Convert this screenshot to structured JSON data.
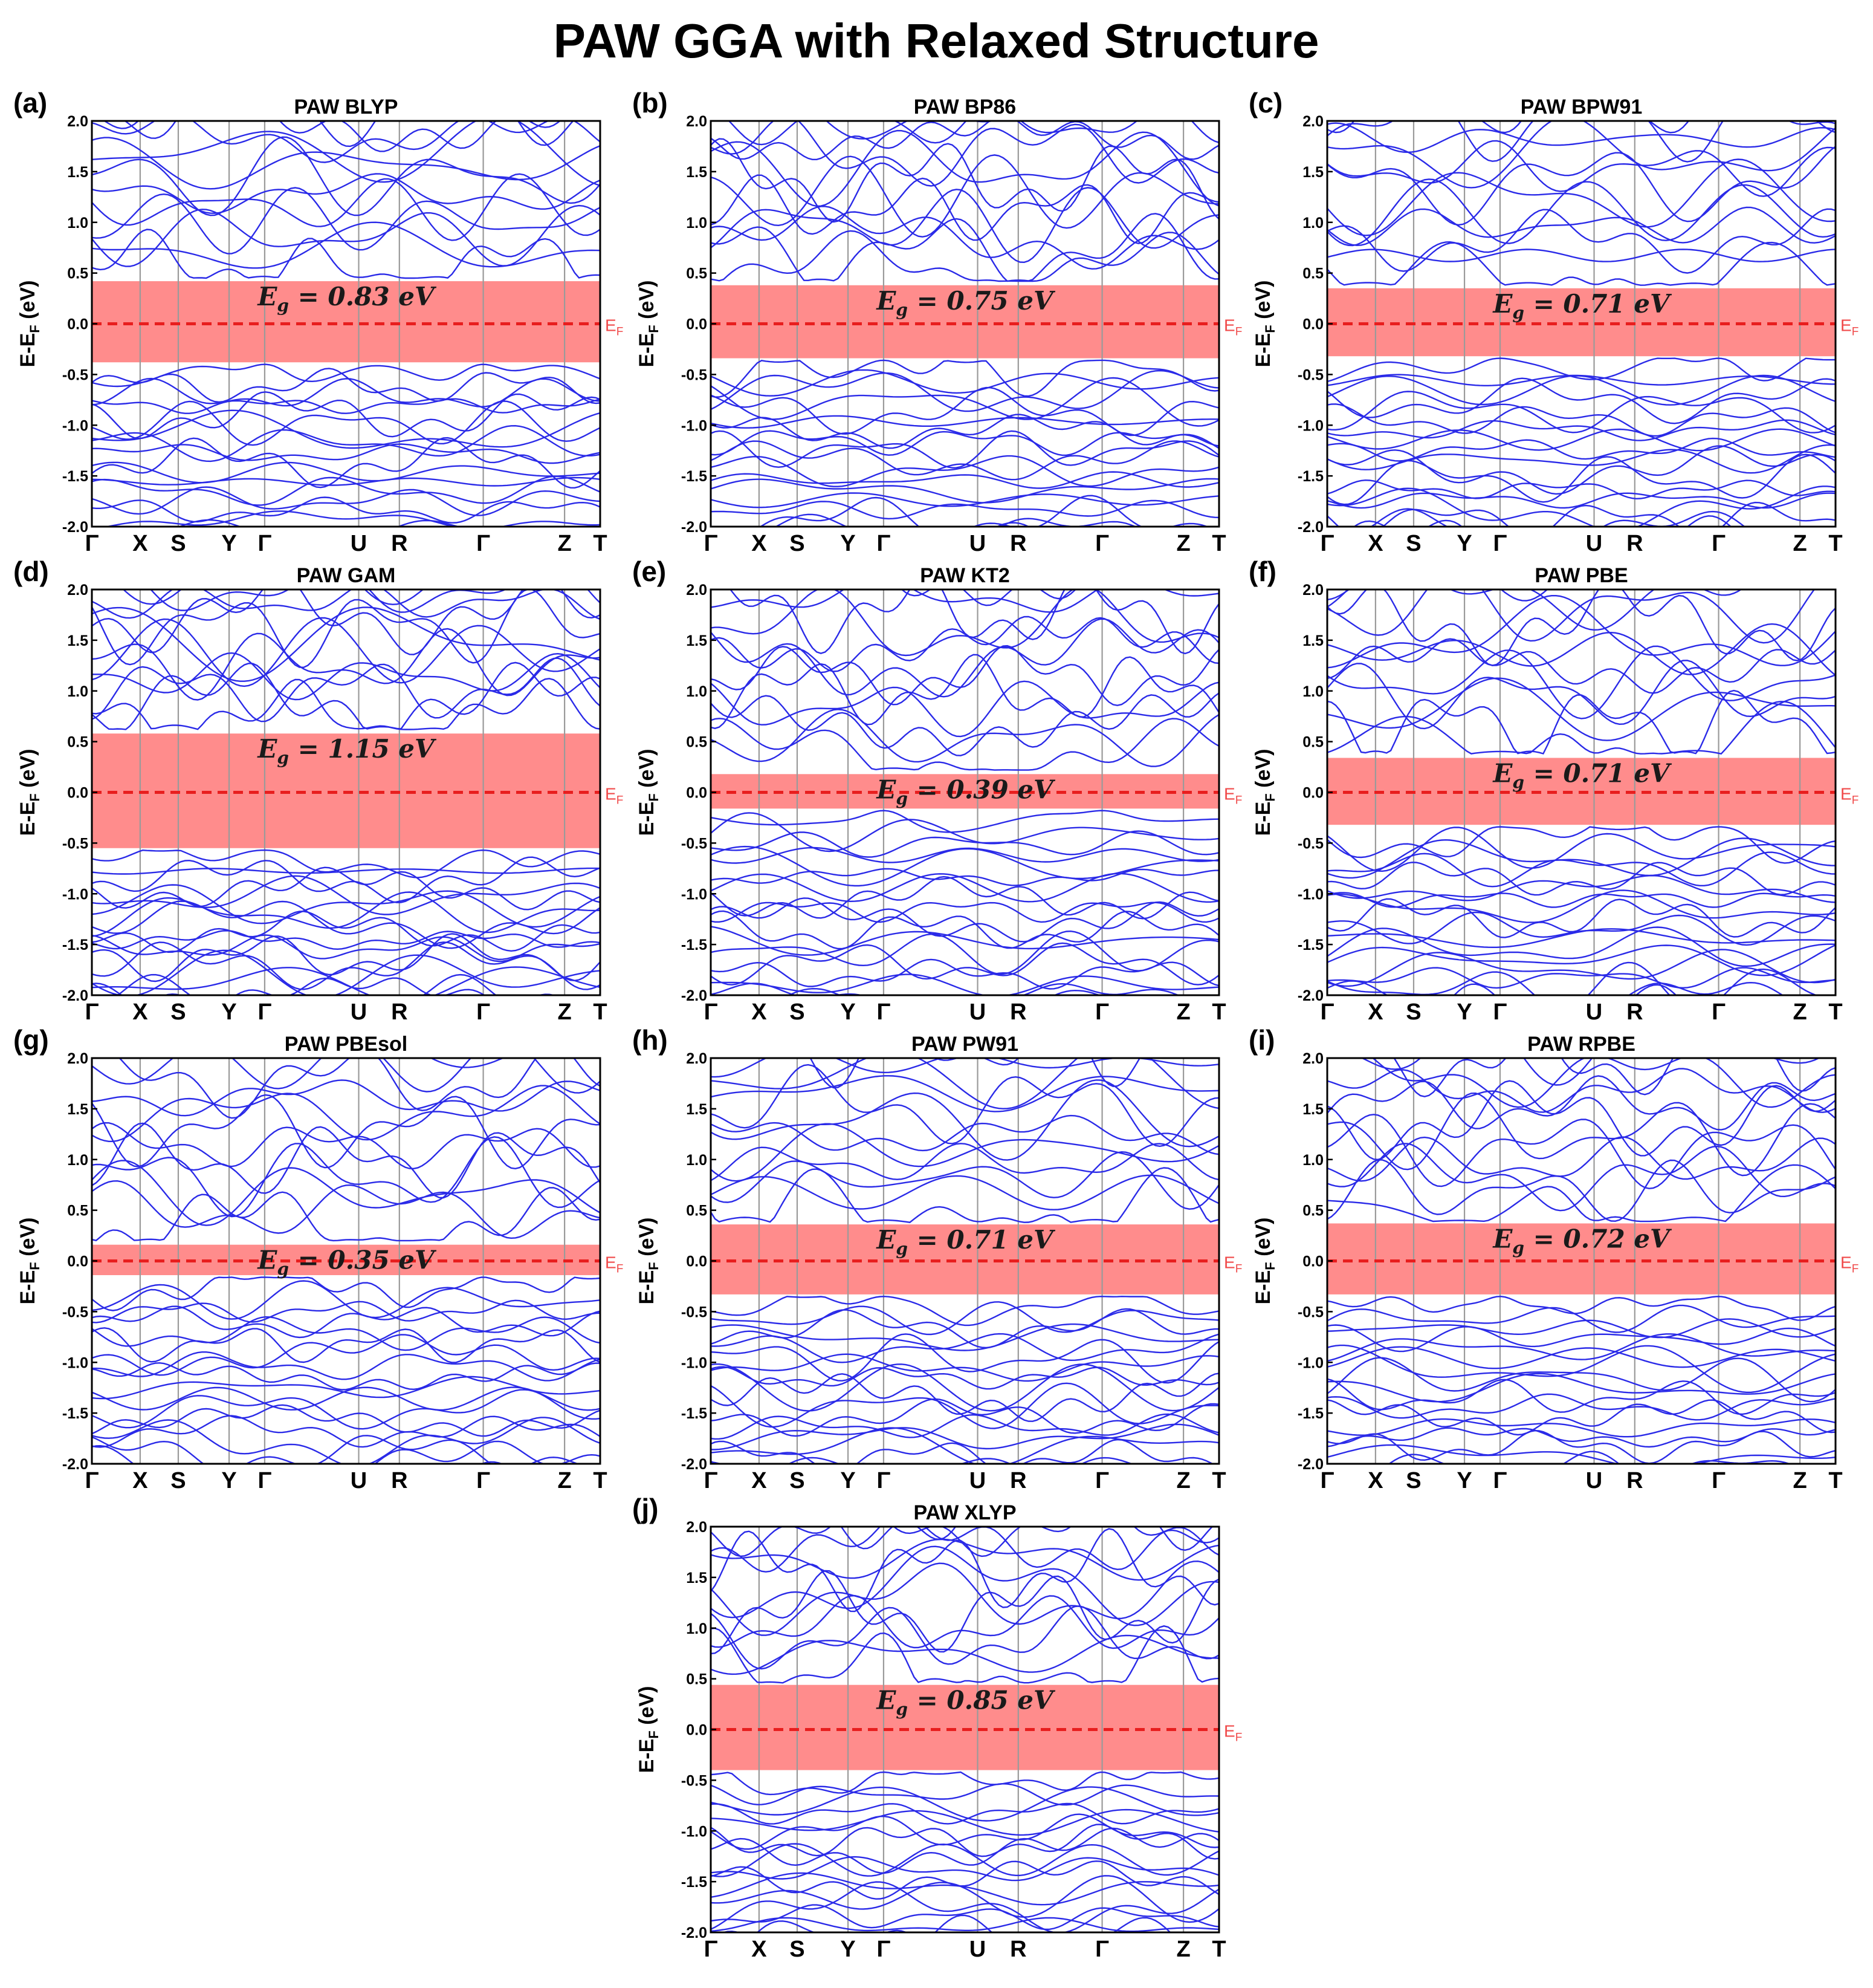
{
  "figure_title": "PAW GGA with Relaxed Structure",
  "colors": {
    "band": "#2a2ae8",
    "gap_fill": "#ff6b6b",
    "fermi": "#e81e1e",
    "ef_label": "#f04a4a",
    "kline": "#9a9a9a"
  },
  "ylabel": "E-E",
  "ylabel_sub": "F",
  "ylabel_suffix": " (eV)",
  "fermi_label": "E",
  "fermi_label_sub": "F",
  "chart_data": [
    {
      "type": "line",
      "panel": "(a)",
      "title": "PAW BLYP",
      "gap_label": "E_g = 0.83 eV",
      "gap_value": "0.83",
      "gap_range": [
        -0.38,
        0.42
      ],
      "xticks": [
        "Γ",
        "X",
        "S",
        "Y",
        "Γ",
        "U",
        "R",
        "Γ",
        "Z",
        "T"
      ],
      "ylim": [
        -2.0,
        2.0
      ],
      "yticks": [
        "2.0",
        "1.5",
        "1.0",
        "0.5",
        "0.0",
        "-0.5",
        "-1.0",
        "-1.5",
        "-2.0"
      ],
      "ylabel": "E-E_F (eV)",
      "cbm": 0.45,
      "vbm": -0.4
    },
    {
      "type": "line",
      "panel": "(b)",
      "title": "PAW BP86",
      "gap_label": "E_g = 0.75 eV",
      "gap_value": "0.75",
      "gap_range": [
        -0.34,
        0.38
      ],
      "xticks": [
        "Γ",
        "X",
        "S",
        "Y",
        "Γ",
        "U",
        "R",
        "Γ",
        "Z",
        "T"
      ],
      "ylim": [
        -2.0,
        2.0
      ],
      "yticks": [
        "2.0",
        "1.5",
        "1.0",
        "0.5",
        "0.0",
        "-0.5",
        "-1.0",
        "-1.5",
        "-2.0"
      ],
      "ylabel": "E-E_F (eV)",
      "cbm": 0.42,
      "vbm": -0.36
    },
    {
      "type": "line",
      "panel": "(c)",
      "title": "PAW BPW91",
      "gap_label": "E_g = 0.71 eV",
      "gap_value": "0.71",
      "gap_range": [
        -0.32,
        0.35
      ],
      "xticks": [
        "Γ",
        "X",
        "S",
        "Y",
        "Γ",
        "U",
        "R",
        "Γ",
        "Z",
        "T"
      ],
      "ylim": [
        -2.0,
        2.0
      ],
      "yticks": [
        "2.0",
        "1.5",
        "1.0",
        "0.5",
        "0.0",
        "-0.5",
        "-1.0",
        "-1.5",
        "-2.0"
      ],
      "ylabel": "E-E_F (eV)",
      "cbm": 0.38,
      "vbm": -0.34
    },
    {
      "type": "line",
      "panel": "(d)",
      "title": "PAW GAM",
      "gap_label": "E_g = 1.15 eV",
      "gap_value": "1.15",
      "gap_range": [
        -0.55,
        0.58
      ],
      "xticks": [
        "Γ",
        "X",
        "S",
        "Y",
        "Γ",
        "U",
        "R",
        "Γ",
        "Z",
        "T"
      ],
      "ylim": [
        -2.0,
        2.0
      ],
      "yticks": [
        "2.0",
        "1.5",
        "1.0",
        "0.5",
        "0.0",
        "-0.5",
        "-1.0",
        "-1.5",
        "-2.0"
      ],
      "ylabel": "E-E_F (eV)",
      "cbm": 0.62,
      "vbm": -0.57
    },
    {
      "type": "line",
      "panel": "(e)",
      "title": "PAW KT2",
      "gap_label": "E_g = 0.39 eV",
      "gap_value": "0.39",
      "gap_range": [
        -0.16,
        0.18
      ],
      "xticks": [
        "Γ",
        "X",
        "S",
        "Y",
        "Γ",
        "U",
        "R",
        "Γ",
        "Z",
        "T"
      ],
      "ylim": [
        -2.0,
        2.0
      ],
      "yticks": [
        "2.0",
        "1.5",
        "1.0",
        "0.5",
        "0.0",
        "-0.5",
        "-1.0",
        "-1.5",
        "-2.0"
      ],
      "ylabel": "E-E_F (eV)",
      "cbm": 0.22,
      "vbm": -0.18
    },
    {
      "type": "line",
      "panel": "(f)",
      "title": "PAW PBE",
      "gap_label": "E_g = 0.71 eV",
      "gap_value": "0.71",
      "gap_range": [
        -0.32,
        0.34
      ],
      "xticks": [
        "Γ",
        "X",
        "S",
        "Y",
        "Γ",
        "U",
        "R",
        "Γ",
        "Z",
        "T"
      ],
      "ylim": [
        -2.0,
        2.0
      ],
      "yticks": [
        "2.0",
        "1.5",
        "1.0",
        "0.5",
        "0.0",
        "-0.5",
        "-1.0",
        "-1.5",
        "-2.0"
      ],
      "ylabel": "E-E_F (eV)",
      "cbm": 0.38,
      "vbm": -0.34
    },
    {
      "type": "line",
      "panel": "(g)",
      "title": "PAW PBEsol",
      "gap_label": "E_g = 0.35 eV",
      "gap_value": "0.35",
      "gap_range": [
        -0.14,
        0.16
      ],
      "xticks": [
        "Γ",
        "X",
        "S",
        "Y",
        "Γ",
        "U",
        "R",
        "Γ",
        "Z",
        "T"
      ],
      "ylim": [
        -2.0,
        2.0
      ],
      "yticks": [
        "2.0",
        "1.5",
        "1.0",
        "0.5",
        "0.0",
        "-0.5",
        "-1.0",
        "-1.5",
        "-2.0"
      ],
      "ylabel": "E-E_F (eV)",
      "cbm": 0.2,
      "vbm": -0.16
    },
    {
      "type": "line",
      "panel": "(h)",
      "title": "PAW PW91",
      "gap_label": "E_g = 0.71 eV",
      "gap_value": "0.71",
      "gap_range": [
        -0.33,
        0.36
      ],
      "xticks": [
        "Γ",
        "X",
        "S",
        "Y",
        "Γ",
        "U",
        "R",
        "Γ",
        "Z",
        "T"
      ],
      "ylim": [
        -2.0,
        2.0
      ],
      "yticks": [
        "2.0",
        "1.5",
        "1.0",
        "0.5",
        "0.0",
        "-0.5",
        "-1.0",
        "-1.5",
        "-2.0"
      ],
      "ylabel": "E-E_F (eV)",
      "cbm": 0.38,
      "vbm": -0.35
    },
    {
      "type": "line",
      "panel": "(i)",
      "title": "PAW RPBE",
      "gap_label": "E_g = 0.72 eV",
      "gap_value": "0.72",
      "gap_range": [
        -0.33,
        0.37
      ],
      "xticks": [
        "Γ",
        "X",
        "S",
        "Y",
        "Γ",
        "U",
        "R",
        "Γ",
        "Z",
        "T"
      ],
      "ylim": [
        -2.0,
        2.0
      ],
      "yticks": [
        "2.0",
        "1.5",
        "1.0",
        "0.5",
        "0.0",
        "-0.5",
        "-1.0",
        "-1.5",
        "-2.0"
      ],
      "ylabel": "E-E_F (eV)",
      "cbm": 0.39,
      "vbm": -0.35
    },
    {
      "type": "line",
      "panel": "(j)",
      "title": "PAW XLYP",
      "gap_label": "E_g = 0.85 eV",
      "gap_value": "0.85",
      "gap_range": [
        -0.4,
        0.44
      ],
      "xticks": [
        "Γ",
        "X",
        "S",
        "Y",
        "Γ",
        "U",
        "R",
        "Γ",
        "Z",
        "T"
      ],
      "ylim": [
        -2.0,
        2.0
      ],
      "yticks": [
        "2.0",
        "1.5",
        "1.0",
        "0.5",
        "0.0",
        "-0.5",
        "-1.0",
        "-1.5",
        "-2.0"
      ],
      "ylabel": "E-E_F (eV)",
      "cbm": 0.46,
      "vbm": -0.42
    }
  ]
}
